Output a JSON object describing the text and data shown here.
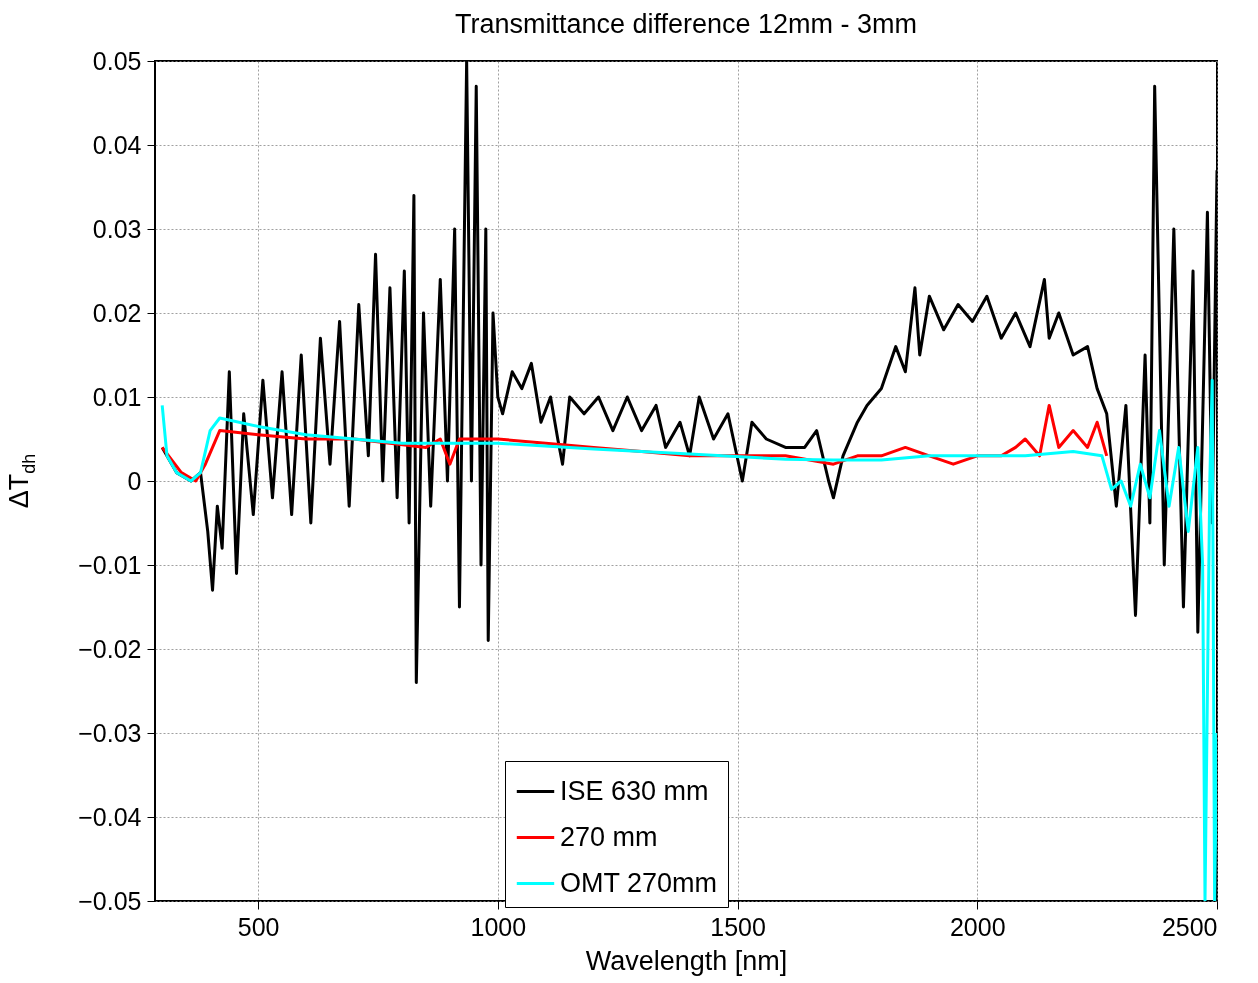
{
  "chart_data": {
    "type": "line",
    "title": "Transmittance difference 12mm - 3mm",
    "xlabel": "Wavelength [nm]",
    "ylabel": "ΔT$_{dh}$",
    "xlim": [
      285,
      2500
    ],
    "xticks": [
      500,
      1000,
      1500,
      2000,
      2500
    ],
    "ylim": [
      -0.05,
      0.05
    ],
    "yticks": [
      -0.05,
      -0.04,
      -0.03,
      -0.02,
      -0.01,
      0,
      0.01,
      0.02,
      0.03,
      0.04,
      0.05
    ],
    "grid": true,
    "legend": "bottom",
    "line_style": "solid",
    "marker": "none",
    "series": [
      {
        "name": "ISE 630 mm",
        "color": "#000000",
        "x": [
          300,
          330,
          360,
          380,
          395,
          405,
          415,
          425,
          440,
          455,
          470,
          490,
          510,
          530,
          550,
          570,
          590,
          610,
          630,
          650,
          670,
          690,
          710,
          730,
          745,
          760,
          775,
          790,
          805,
          815,
          825,
          830,
          845,
          860,
          880,
          895,
          910,
          920,
          935,
          945,
          955,
          965,
          975,
          980,
          990,
          1000,
          1010,
          1030,
          1050,
          1070,
          1090,
          1110,
          1125,
          1135,
          1150,
          1180,
          1210,
          1240,
          1270,
          1300,
          1330,
          1350,
          1380,
          1400,
          1420,
          1450,
          1480,
          1510,
          1530,
          1560,
          1600,
          1640,
          1665,
          1690,
          1700,
          1720,
          1750,
          1770,
          1800,
          1830,
          1850,
          1870,
          1880,
          1900,
          1930,
          1960,
          1990,
          2020,
          2050,
          2080,
          2110,
          2140,
          2150,
          2170,
          2200,
          2230,
          2250,
          2270,
          2290,
          2310,
          2330,
          2350,
          2360,
          2370,
          2390,
          2410,
          2430,
          2450,
          2460,
          2480,
          2490,
          2500
        ],
        "values": [
          0.004,
          0.001,
          0.0,
          0.001,
          -0.006,
          -0.013,
          -0.003,
          -0.008,
          0.013,
          -0.011,
          0.008,
          -0.004,
          0.012,
          -0.002,
          0.013,
          -0.004,
          0.015,
          -0.005,
          0.017,
          0.002,
          0.019,
          -0.003,
          0.021,
          0.003,
          0.027,
          0.0,
          0.023,
          -0.002,
          0.025,
          -0.005,
          0.034,
          -0.024,
          0.02,
          -0.003,
          0.024,
          0.0,
          0.03,
          -0.015,
          0.05,
          0.0,
          0.047,
          -0.01,
          0.03,
          -0.019,
          0.02,
          0.01,
          0.008,
          0.013,
          0.011,
          0.014,
          0.007,
          0.01,
          0.005,
          0.002,
          0.01,
          0.008,
          0.01,
          0.006,
          0.01,
          0.006,
          0.009,
          0.004,
          0.007,
          0.003,
          0.01,
          0.005,
          0.008,
          0.0,
          0.007,
          0.005,
          0.004,
          0.004,
          0.006,
          0.0,
          -0.002,
          0.003,
          0.007,
          0.009,
          0.011,
          0.016,
          0.013,
          0.023,
          0.015,
          0.022,
          0.018,
          0.021,
          0.019,
          0.022,
          0.017,
          0.02,
          0.016,
          0.024,
          0.017,
          0.02,
          0.015,
          0.016,
          0.011,
          0.008,
          -0.003,
          0.009,
          -0.016,
          0.015,
          -0.005,
          0.047,
          -0.01,
          0.03,
          -0.015,
          0.025,
          -0.018,
          0.032,
          -0.005,
          0.037
        ]
      },
      {
        "name": "270 mm",
        "color": "#ff0000",
        "x": [
          300,
          340,
          370,
          390,
          420,
          500,
          600,
          700,
          850,
          880,
          900,
          920,
          1000,
          1100,
          1200,
          1300,
          1400,
          1500,
          1600,
          1700,
          1750,
          1800,
          1850,
          1900,
          1950,
          2000,
          2050,
          2080,
          2100,
          2130,
          2150,
          2170,
          2200,
          2230,
          2250,
          2270
        ],
        "values": [
          0.004,
          0.001,
          0.0,
          0.002,
          0.006,
          0.0055,
          0.005,
          0.005,
          0.004,
          0.005,
          0.002,
          0.005,
          0.005,
          0.0045,
          0.004,
          0.0035,
          0.003,
          0.003,
          0.003,
          0.002,
          0.003,
          0.003,
          0.004,
          0.003,
          0.002,
          0.003,
          0.003,
          0.004,
          0.005,
          0.003,
          0.009,
          0.004,
          0.006,
          0.004,
          0.007,
          0.003
        ]
      },
      {
        "name": "OMT 270mm",
        "color": "#00ffff",
        "x": [
          300,
          310,
          330,
          360,
          380,
          400,
          420,
          500,
          600,
          700,
          800,
          900,
          1000,
          1200,
          1400,
          1600,
          1700,
          1800,
          1900,
          2000,
          2100,
          2200,
          2260,
          2280,
          2300,
          2320,
          2340,
          2360,
          2380,
          2400,
          2420,
          2440,
          2460,
          2470,
          2475,
          2485,
          2490,
          2495,
          2500
        ],
        "values": [
          0.009,
          0.003,
          0.001,
          0.0,
          0.001,
          0.006,
          0.0075,
          0.0065,
          0.0055,
          0.005,
          0.0045,
          0.0045,
          0.0045,
          0.0038,
          0.0032,
          0.0026,
          0.0025,
          0.0025,
          0.003,
          0.003,
          0.003,
          0.0035,
          0.003,
          -0.001,
          0.0,
          -0.003,
          0.002,
          -0.002,
          0.006,
          -0.003,
          0.004,
          -0.006,
          0.004,
          -0.01,
          -0.05,
          0.0,
          0.012,
          -0.05,
          -0.03
        ]
      }
    ]
  }
}
